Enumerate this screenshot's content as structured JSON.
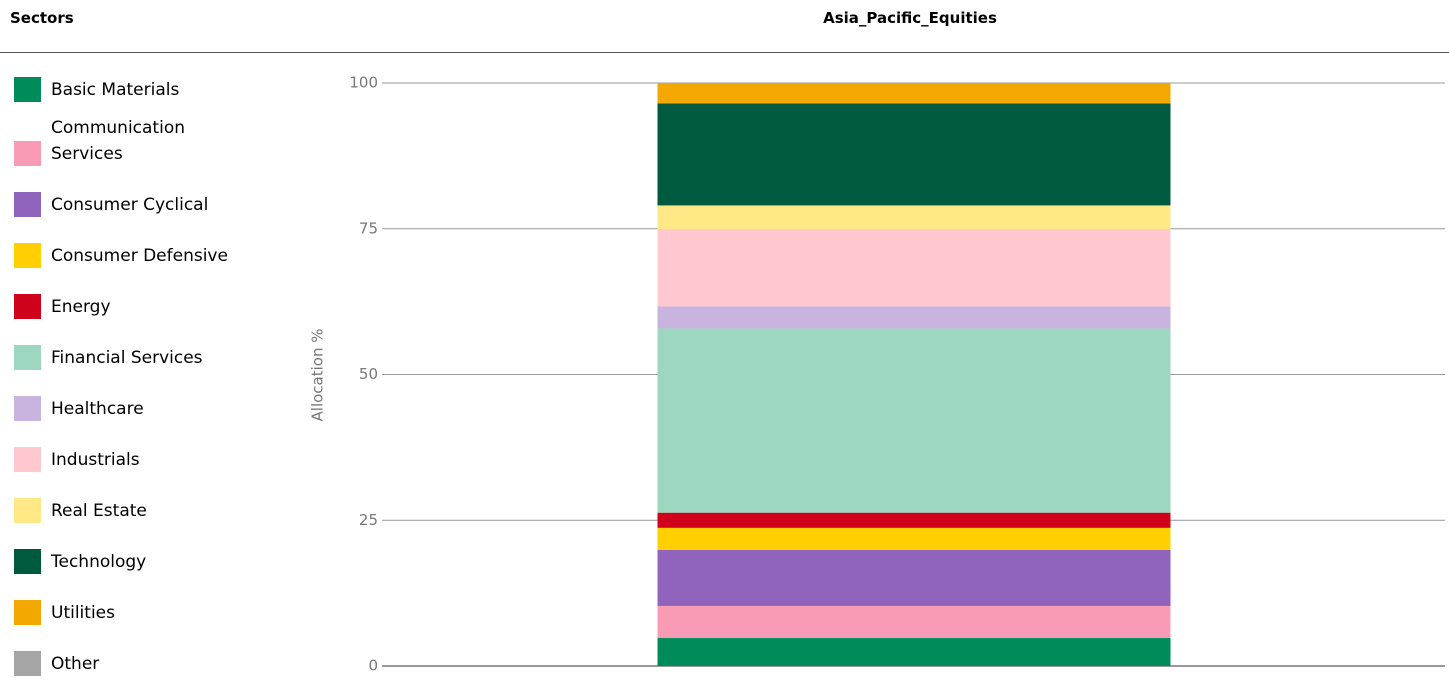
{
  "chart_data": {
    "type": "stacked_bar",
    "legend_title": "Sectors",
    "categories": [
      "Asia_Pacific_Equities"
    ],
    "ylabel": "Allocation %",
    "ylim": [
      0,
      100
    ],
    "yticks": [
      0,
      25,
      50,
      75,
      100
    ],
    "grid": true,
    "legend": "left",
    "series": [
      {
        "name": "Basic Materials",
        "color": "#008c5a",
        "values": [
          4.8
        ]
      },
      {
        "name": "Communication Services",
        "color": "#f99bb4",
        "values": [
          5.5
        ]
      },
      {
        "name": "Consumer Cyclical",
        "color": "#9063bc",
        "values": [
          9.6
        ]
      },
      {
        "name": "Consumer Defensive",
        "color": "#ffcf00",
        "values": [
          3.8
        ]
      },
      {
        "name": "Energy",
        "color": "#d0021b",
        "values": [
          2.6
        ]
      },
      {
        "name": "Financial Services",
        "color": "#9dd7c0",
        "values": [
          31.6
        ]
      },
      {
        "name": "Healthcare",
        "color": "#c8b4de",
        "values": [
          3.8
        ]
      },
      {
        "name": "Industrials",
        "color": "#ffc8cf",
        "values": [
          13.2
        ]
      },
      {
        "name": "Real Estate",
        "color": "#ffe885",
        "values": [
          4.1
        ]
      },
      {
        "name": "Technology",
        "color": "#005a3f",
        "values": [
          17.5
        ]
      },
      {
        "name": "Utilities",
        "color": "#f3a800",
        "values": [
          3.5
        ]
      },
      {
        "name": "Other",
        "color": "#a5a5a5",
        "values": [
          0
        ]
      }
    ]
  }
}
